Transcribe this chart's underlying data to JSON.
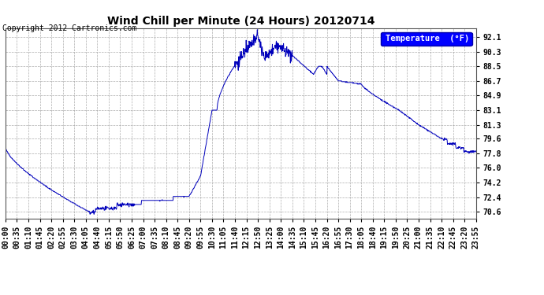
{
  "title": "Wind Chill per Minute (24 Hours) 20120714",
  "copyright": "Copyright 2012 Cartronics.com",
  "legend_label": "Temperature  (°F)",
  "line_color": "#0000bb",
  "background_color": "#ffffff",
  "grid_color": "#999999",
  "yticks": [
    70.6,
    72.4,
    74.2,
    76.0,
    77.8,
    79.6,
    81.3,
    83.1,
    84.9,
    86.7,
    88.5,
    90.3,
    92.1
  ],
  "ylim": [
    69.8,
    93.2
  ],
  "xtick_labels": [
    "00:00",
    "00:35",
    "01:10",
    "01:45",
    "02:20",
    "02:55",
    "03:30",
    "04:05",
    "04:40",
    "05:15",
    "05:50",
    "06:25",
    "07:00",
    "07:35",
    "08:10",
    "08:45",
    "09:20",
    "09:55",
    "10:30",
    "11:05",
    "11:40",
    "12:15",
    "12:50",
    "13:25",
    "14:00",
    "14:35",
    "15:10",
    "15:45",
    "16:20",
    "16:55",
    "17:30",
    "18:05",
    "18:40",
    "19:15",
    "19:50",
    "20:25",
    "21:00",
    "21:35",
    "22:10",
    "22:45",
    "23:20",
    "23:55"
  ],
  "title_fontsize": 10,
  "tick_fontsize": 7,
  "copyright_fontsize": 7
}
